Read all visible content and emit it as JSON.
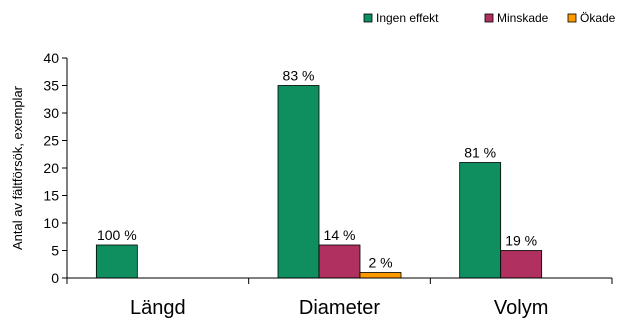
{
  "chart_data": {
    "type": "bar",
    "categories": [
      "Längd",
      "Diameter",
      "Volym"
    ],
    "series": [
      {
        "name": "Ingen effekt",
        "values": [
          6,
          35,
          21
        ],
        "labels": [
          "100 %",
          "83 %",
          "81 %"
        ],
        "color": "#0f8f5f"
      },
      {
        "name": "Minskade",
        "values": [
          null,
          6,
          5
        ],
        "labels": [
          "",
          "14 %",
          "19 %"
        ],
        "color": "#b03060"
      },
      {
        "name": "Ökade",
        "values": [
          null,
          1,
          null
        ],
        "labels": [
          "",
          "2 %",
          ""
        ],
        "color": "#ff9900"
      }
    ],
    "title": "",
    "xlabel": "",
    "ylabel": "Antal av fältförsök, exemplar",
    "ylim": [
      0,
      40
    ],
    "yticks": [
      0,
      5,
      10,
      15,
      20,
      25,
      30,
      35,
      40
    ],
    "grid": false,
    "legend_position": "top-right"
  }
}
